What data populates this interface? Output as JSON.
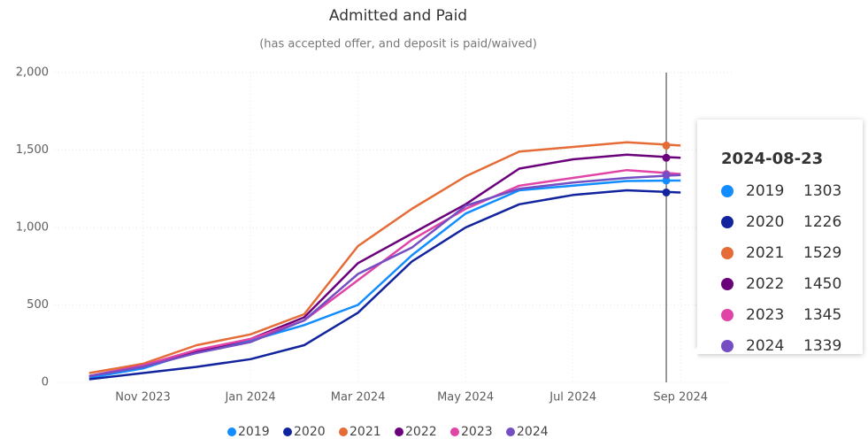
{
  "chart_data": {
    "type": "line",
    "title": "Admitted and Paid",
    "subtitle": "(has accepted offer, and deposit is paid/waived)",
    "x": [
      "2023-10",
      "2023-11",
      "2023-12",
      "2024-01",
      "2024-02",
      "2024-03",
      "2024-04",
      "2024-05",
      "2024-06",
      "2024-07",
      "2024-08",
      "2024-09"
    ],
    "xlim": [
      "2023-09",
      "2024-10"
    ],
    "xticks": [
      {
        "value": "2023-11",
        "label": "Nov 2023"
      },
      {
        "value": "2024-01",
        "label": "Jan 2024"
      },
      {
        "value": "2024-03",
        "label": "Mar 2024"
      },
      {
        "value": "2024-05",
        "label": "May 2024"
      },
      {
        "value": "2024-07",
        "label": "Jul 2024"
      },
      {
        "value": "2024-09",
        "label": "Sep 2024"
      }
    ],
    "ylim": [
      0,
      2000
    ],
    "yticks": [
      0,
      500,
      {
        "value": 1000,
        "label": "1,000"
      },
      {
        "value": 1500,
        "label": "1,500"
      },
      {
        "value": 2000,
        "label": "2,000"
      }
    ],
    "grid": true,
    "legend": "bottom",
    "series": [
      {
        "name": "2019",
        "color": "#118dff",
        "values": [
          30,
          90,
          200,
          270,
          370,
          500,
          820,
          1090,
          1240,
          1270,
          1300,
          1303
        ]
      },
      {
        "name": "2020",
        "color": "#12239e",
        "values": [
          20,
          60,
          100,
          150,
          240,
          450,
          780,
          1000,
          1150,
          1210,
          1240,
          1226
        ]
      },
      {
        "name": "2021",
        "color": "#e66c37",
        "values": [
          60,
          120,
          240,
          310,
          440,
          880,
          1120,
          1330,
          1490,
          1520,
          1550,
          1529
        ]
      },
      {
        "name": "2022",
        "color": "#6b007b",
        "values": [
          40,
          110,
          200,
          280,
          420,
          770,
          960,
          1150,
          1380,
          1440,
          1470,
          1450
        ]
      },
      {
        "name": "2023",
        "color": "#e044a7",
        "values": [
          40,
          110,
          210,
          280,
          400,
          660,
          920,
          1120,
          1270,
          1320,
          1370,
          1345
        ]
      },
      {
        "name": "2024",
        "color": "#744ec2",
        "values": [
          40,
          100,
          190,
          260,
          400,
          700,
          870,
          1140,
          1250,
          1290,
          1320,
          1339
        ]
      }
    ],
    "tooltip": {
      "date": "2024-08-23",
      "values": [
        1303,
        1226,
        1529,
        1450,
        1345,
        1339
      ]
    }
  }
}
